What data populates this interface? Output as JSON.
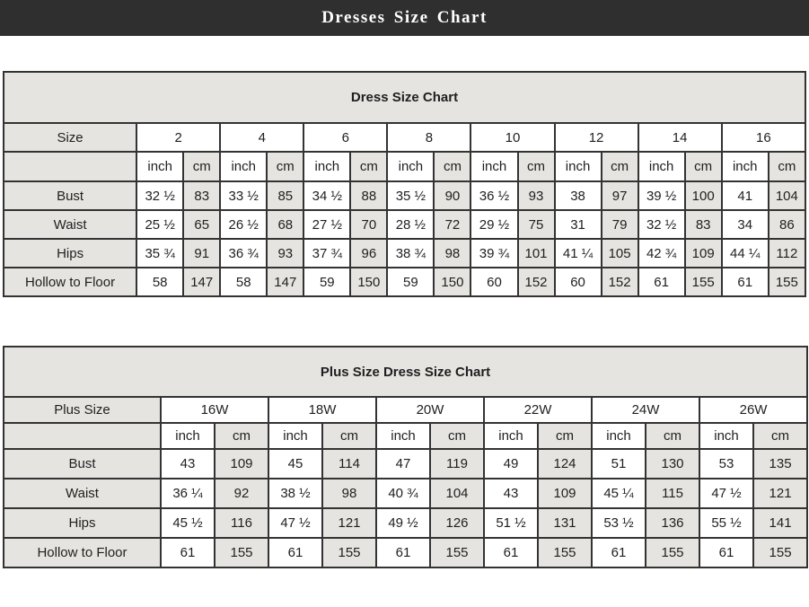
{
  "page_header": {
    "title": "Dresses Size Chart"
  },
  "colors": {
    "header_bar_bg": "#2f2f2f",
    "shaded_cell_bg": "#e6e4e1",
    "table_border": "#333333"
  },
  "tables": [
    {
      "title": "Dress Size Chart",
      "size_label": "Size",
      "sizes": [
        "2",
        "4",
        "6",
        "8",
        "10",
        "12",
        "14",
        "16"
      ],
      "units": {
        "inch": "inch",
        "cm": "cm"
      },
      "rows": [
        {
          "label": "Bust",
          "values": [
            [
              "32 ½",
              "83"
            ],
            [
              "33 ½",
              "85"
            ],
            [
              "34 ½",
              "88"
            ],
            [
              "35 ½",
              "90"
            ],
            [
              "36 ½",
              "93"
            ],
            [
              "38",
              "97"
            ],
            [
              "39 ½",
              "100"
            ],
            [
              "41",
              "104"
            ]
          ]
        },
        {
          "label": "Waist",
          "values": [
            [
              "25 ½",
              "65"
            ],
            [
              "26 ½",
              "68"
            ],
            [
              "27 ½",
              "70"
            ],
            [
              "28 ½",
              "72"
            ],
            [
              "29 ½",
              "75"
            ],
            [
              "31",
              "79"
            ],
            [
              "32 ½",
              "83"
            ],
            [
              "34",
              "86"
            ]
          ]
        },
        {
          "label": "Hips",
          "values": [
            [
              "35 ¾",
              "91"
            ],
            [
              "36 ¾",
              "93"
            ],
            [
              "37 ¾",
              "96"
            ],
            [
              "38 ¾",
              "98"
            ],
            [
              "39 ¾",
              "101"
            ],
            [
              "41 ¼",
              "105"
            ],
            [
              "42 ¾",
              "109"
            ],
            [
              "44 ¼",
              "112"
            ]
          ]
        },
        {
          "label": "Hollow to Floor",
          "values": [
            [
              "58",
              "147"
            ],
            [
              "58",
              "147"
            ],
            [
              "59",
              "150"
            ],
            [
              "59",
              "150"
            ],
            [
              "60",
              "152"
            ],
            [
              "60",
              "152"
            ],
            [
              "61",
              "155"
            ],
            [
              "61",
              "155"
            ]
          ]
        }
      ]
    },
    {
      "title": "Plus Size Dress Size Chart",
      "size_label": "Plus Size",
      "sizes": [
        "16W",
        "18W",
        "20W",
        "22W",
        "24W",
        "26W"
      ],
      "units": {
        "inch": "inch",
        "cm": "cm"
      },
      "rows": [
        {
          "label": "Bust",
          "values": [
            [
              "43",
              "109"
            ],
            [
              "45",
              "114"
            ],
            [
              "47",
              "119"
            ],
            [
              "49",
              "124"
            ],
            [
              "51",
              "130"
            ],
            [
              "53",
              "135"
            ]
          ]
        },
        {
          "label": "Waist",
          "values": [
            [
              "36 ¼",
              "92"
            ],
            [
              "38 ½",
              "98"
            ],
            [
              "40 ¾",
              "104"
            ],
            [
              "43",
              "109"
            ],
            [
              "45 ¼",
              "115"
            ],
            [
              "47 ½",
              "121"
            ]
          ]
        },
        {
          "label": "Hips",
          "values": [
            [
              "45 ½",
              "116"
            ],
            [
              "47 ½",
              "121"
            ],
            [
              "49 ½",
              "126"
            ],
            [
              "51 ½",
              "131"
            ],
            [
              "53 ½",
              "136"
            ],
            [
              "55 ½",
              "141"
            ]
          ]
        },
        {
          "label": "Hollow to Floor",
          "values": [
            [
              "61",
              "155"
            ],
            [
              "61",
              "155"
            ],
            [
              "61",
              "155"
            ],
            [
              "61",
              "155"
            ],
            [
              "61",
              "155"
            ],
            [
              "61",
              "155"
            ]
          ]
        }
      ]
    }
  ]
}
